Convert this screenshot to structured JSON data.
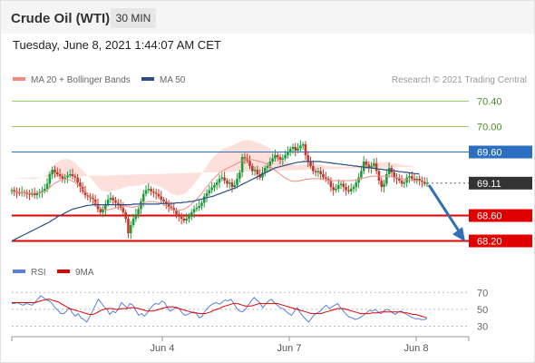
{
  "header": {
    "title": "Crude Oil (WTI)",
    "timeframe": "30 MIN"
  },
  "timestamp": "Tuesday, June 8, 2021 1:44:07 AM CET",
  "legend": {
    "ma20": {
      "label": "MA 20 + Bollinger Bands",
      "color": "#f08a80"
    },
    "ma50": {
      "label": "MA 50",
      "color": "#2c4e87"
    },
    "rsi": {
      "label": "RSI",
      "color": "#5a7fd6"
    },
    "ma9": {
      "label": "9MA",
      "color": "#e00000"
    }
  },
  "copyright": "Research © 2021 Trading Central",
  "colors": {
    "up": "#1e9b3a",
    "down": "#c0392b",
    "resistance": "#2c6fc0",
    "support": "#e00000",
    "target": "#9ccc65",
    "current": "#333333",
    "arrow": "#2e6fb8"
  },
  "chart_data": [
    {
      "type": "candlestick",
      "yaxis": {
        "ticks": [
          68.2,
          68.6,
          69.11,
          69.6,
          70.0,
          70.4
        ],
        "min": 68.15,
        "max": 70.55
      },
      "x_labels": [
        "Jun 4",
        "Jun 7",
        "Jun 8"
      ],
      "levels": [
        {
          "value": 70.4,
          "label": "70.40",
          "kind": "target"
        },
        {
          "value": 70.0,
          "label": "70.00",
          "kind": "target"
        },
        {
          "value": 69.6,
          "label": "69.60",
          "kind": "resistance"
        },
        {
          "value": 69.11,
          "label": "69.11",
          "kind": "current"
        },
        {
          "value": 68.6,
          "label": "68.60",
          "kind": "support"
        },
        {
          "value": 68.2,
          "label": "68.20",
          "kind": "support"
        }
      ],
      "closes": [
        69.0,
        68.98,
        68.96,
        68.95,
        68.97,
        68.96,
        68.94,
        68.93,
        68.95,
        68.92,
        68.95,
        68.97,
        68.99,
        69.02,
        69.1,
        69.25,
        69.32,
        69.28,
        69.25,
        69.22,
        69.18,
        69.2,
        69.23,
        69.25,
        69.22,
        69.2,
        69.12,
        69.05,
        68.98,
        68.92,
        68.9,
        68.88,
        68.85,
        68.78,
        68.7,
        68.65,
        68.7,
        68.78,
        68.85,
        68.88,
        68.84,
        68.8,
        68.78,
        68.72,
        68.65,
        68.55,
        68.32,
        68.45,
        68.55,
        68.62,
        68.7,
        68.82,
        68.94,
        69.0,
        69.02,
        68.98,
        68.96,
        68.94,
        68.9,
        68.85,
        68.82,
        68.78,
        68.74,
        68.72,
        68.68,
        68.62,
        68.58,
        68.55,
        68.52,
        68.55,
        68.6,
        68.65,
        68.7,
        68.72,
        68.75,
        68.8,
        68.9,
        68.95,
        69.0,
        69.04,
        69.08,
        69.12,
        69.18,
        69.2,
        69.15,
        69.1,
        69.12,
        69.05,
        69.08,
        69.18,
        69.28,
        69.52,
        69.5,
        69.46,
        69.38,
        69.3,
        69.32,
        69.25,
        69.2,
        69.28,
        69.35,
        69.38,
        69.45,
        69.5,
        69.55,
        69.52,
        69.48,
        69.5,
        69.55,
        69.6,
        69.65,
        69.68,
        69.62,
        69.66,
        69.7,
        69.72,
        69.55,
        69.45,
        69.38,
        69.3,
        69.28,
        69.3,
        69.25,
        69.2,
        69.18,
        69.15,
        69.05,
        69.0,
        69.02,
        69.08,
        69.1,
        69.05,
        69.0,
        68.98,
        69.02,
        69.05,
        69.12,
        69.2,
        69.3,
        69.45,
        69.4,
        69.35,
        69.38,
        69.42,
        69.3,
        69.15,
        69.05,
        69.1,
        69.25,
        69.35,
        69.28,
        69.2,
        69.18,
        69.15,
        69.1,
        69.12,
        69.2,
        69.22,
        69.18,
        69.16,
        69.18,
        69.15,
        69.13,
        69.1,
        69.11
      ],
      "ma20": [
        68.97,
        68.97,
        68.97,
        68.96,
        68.96,
        68.96,
        68.96,
        68.96,
        68.95,
        68.95,
        68.96,
        68.96,
        68.97,
        68.98,
        69.0,
        69.04,
        69.08,
        69.11,
        69.13,
        69.15,
        69.16,
        69.17,
        69.17,
        69.16,
        69.14,
        69.12,
        69.09,
        69.05,
        69.01,
        68.97,
        68.93,
        68.89,
        68.85,
        68.8,
        68.76,
        68.72,
        68.7,
        68.69,
        68.69,
        68.7,
        68.71,
        68.72,
        68.73,
        68.74,
        68.75,
        68.75,
        68.74,
        68.73,
        68.73,
        68.74,
        68.75,
        68.77,
        68.79,
        68.81,
        68.82,
        68.82,
        68.82,
        68.81,
        68.8,
        68.79,
        68.77,
        68.75,
        68.73,
        68.71,
        68.69,
        68.68,
        68.68,
        68.69,
        68.7,
        68.72,
        68.75,
        68.78,
        68.82,
        68.86,
        68.9,
        68.95,
        69.0,
        69.05,
        69.1,
        69.15,
        69.19,
        69.23,
        69.27,
        69.3,
        69.32,
        69.34,
        69.36,
        69.38,
        69.4,
        69.42,
        69.44,
        69.46,
        69.47,
        69.48,
        69.48,
        69.48,
        69.47,
        69.46,
        69.45,
        69.44,
        69.42,
        69.4,
        69.37,
        69.34,
        69.31,
        69.28,
        69.25,
        69.22,
        69.19,
        69.17,
        69.15,
        69.14,
        69.14,
        69.14,
        69.15,
        69.16,
        69.17,
        69.17,
        69.18,
        69.18,
        69.18,
        69.18,
        69.18,
        69.17,
        69.16,
        69.16,
        69.15,
        69.15,
        69.15,
        69.15,
        69.15,
        69.15,
        69.15,
        69.15,
        69.15,
        69.15,
        69.16,
        69.17,
        69.18,
        69.19,
        69.2,
        69.21,
        69.22,
        69.22,
        69.22,
        69.22,
        69.22,
        69.22,
        69.22,
        69.21,
        69.21,
        69.2,
        69.2,
        69.19,
        69.18,
        69.17,
        69.17,
        69.16,
        69.16,
        69.15,
        69.15,
        69.15
      ],
      "ma50": [
        68.2,
        68.22,
        68.24,
        68.26,
        68.28,
        68.3,
        68.32,
        68.34,
        68.36,
        68.38,
        68.4,
        68.42,
        68.44,
        68.46,
        68.48,
        68.5,
        68.53,
        68.55,
        68.58,
        68.6,
        68.62,
        68.64,
        68.66,
        68.68,
        68.7,
        68.71,
        68.72,
        68.73,
        68.74,
        68.75,
        68.76,
        68.76,
        68.77,
        68.77,
        68.77,
        68.77,
        68.77,
        68.77,
        68.77,
        68.77,
        68.77,
        68.77,
        68.77,
        68.77,
        68.77,
        68.77,
        68.77,
        68.77,
        68.78,
        68.78,
        68.78,
        68.78,
        68.78,
        68.78,
        68.78,
        68.78,
        68.78,
        68.78,
        68.78,
        68.79,
        68.79,
        68.79,
        68.79,
        68.79,
        68.79,
        68.8,
        68.8,
        68.8,
        68.81,
        68.81,
        68.82,
        68.82,
        68.83,
        68.84,
        68.85,
        68.86,
        68.87,
        68.88,
        68.89,
        68.9,
        68.91,
        68.93,
        68.94,
        68.96,
        68.97,
        68.99,
        69.0,
        69.02,
        69.03,
        69.05,
        69.07,
        69.09,
        69.11,
        69.13,
        69.15,
        69.17,
        69.19,
        69.21,
        69.23,
        69.25,
        69.27,
        69.29,
        69.31,
        69.33,
        69.35,
        69.36,
        69.37,
        69.38,
        69.39,
        69.4,
        69.41,
        69.42,
        69.43,
        69.44,
        69.44,
        69.45,
        69.45,
        69.45,
        69.45,
        69.45,
        69.45,
        69.45,
        69.45,
        69.44,
        69.44,
        69.43,
        69.43,
        69.42,
        69.42,
        69.41,
        69.41,
        69.4,
        69.4,
        69.39,
        69.39,
        69.38,
        69.38,
        69.37,
        69.37,
        69.36,
        69.36,
        69.35,
        69.35,
        69.34,
        69.34,
        69.33,
        69.33,
        69.32,
        69.32,
        69.31,
        69.31,
        69.3,
        69.3,
        69.29,
        69.29,
        69.28,
        69.28,
        69.27,
        69.27,
        69.26,
        69.26,
        69.25
      ],
      "bb_width": [
        0.22,
        0.22,
        0.22,
        0.22,
        0.22,
        0.22,
        0.22,
        0.22,
        0.22,
        0.22,
        0.22,
        0.23,
        0.23,
        0.24,
        0.25,
        0.27,
        0.29,
        0.3,
        0.31,
        0.32,
        0.32,
        0.32,
        0.32,
        0.32,
        0.31,
        0.31,
        0.3,
        0.3,
        0.3,
        0.3,
        0.3,
        0.3,
        0.3,
        0.3,
        0.29,
        0.29,
        0.29,
        0.29,
        0.28,
        0.28,
        0.28,
        0.28,
        0.28,
        0.28,
        0.29,
        0.3,
        0.32,
        0.33,
        0.33,
        0.33,
        0.32,
        0.31,
        0.3,
        0.29,
        0.28,
        0.28,
        0.27,
        0.27,
        0.26,
        0.26,
        0.25,
        0.25,
        0.24,
        0.24,
        0.24,
        0.24,
        0.24,
        0.24,
        0.24,
        0.25,
        0.26,
        0.27,
        0.28,
        0.29,
        0.3,
        0.31,
        0.32,
        0.33,
        0.34,
        0.34,
        0.34,
        0.34,
        0.34,
        0.34,
        0.34,
        0.33,
        0.33,
        0.32,
        0.32,
        0.32,
        0.32,
        0.32,
        0.31,
        0.31,
        0.3,
        0.3,
        0.29,
        0.29,
        0.28,
        0.28,
        0.28,
        0.28,
        0.28,
        0.27,
        0.27,
        0.27,
        0.27,
        0.27,
        0.27,
        0.26,
        0.26,
        0.26,
        0.25,
        0.25,
        0.25,
        0.25,
        0.24,
        0.24,
        0.24,
        0.24,
        0.23,
        0.23,
        0.23,
        0.22,
        0.22,
        0.22,
        0.22,
        0.22,
        0.22,
        0.22,
        0.22,
        0.22,
        0.22,
        0.22,
        0.22,
        0.22,
        0.22,
        0.22,
        0.22,
        0.22,
        0.22,
        0.22,
        0.22,
        0.22,
        0.22,
        0.22,
        0.22,
        0.22,
        0.22,
        0.22,
        0.22,
        0.22,
        0.22,
        0.22,
        0.22,
        0.22,
        0.22,
        0.22,
        0.22,
        0.22,
        0.22,
        0.22,
        0.22,
        0.22
      ]
    },
    {
      "type": "line",
      "yaxis": {
        "ticks": [
          30,
          50,
          70
        ],
        "min": 22,
        "max": 80
      },
      "series": [
        {
          "name": "RSI",
          "values": [
            57,
            57,
            58,
            56,
            55,
            57,
            56,
            55,
            58,
            62,
            66,
            64,
            61,
            60,
            57,
            52,
            49,
            45,
            45,
            48,
            52,
            46,
            42,
            45,
            40,
            38,
            35,
            41,
            48,
            55,
            62,
            58,
            53,
            50,
            44,
            48,
            46,
            51,
            58,
            55,
            52,
            57,
            55,
            49,
            43,
            45,
            42,
            46,
            51,
            55,
            57,
            56,
            60,
            58,
            52,
            48,
            50,
            53,
            51,
            46,
            43,
            44,
            46,
            47,
            45,
            40,
            42,
            48,
            52,
            55,
            57,
            58,
            56,
            59,
            61,
            60,
            62,
            57,
            51,
            48,
            47,
            50,
            55,
            60,
            64,
            61,
            58,
            52,
            56,
            60,
            62,
            58,
            55,
            52,
            51,
            48,
            45,
            43,
            48,
            52,
            46,
            42,
            38,
            35,
            40,
            44,
            46,
            48,
            52,
            55,
            51,
            53,
            55,
            57,
            52,
            48,
            44,
            41,
            40,
            38,
            39,
            41,
            43,
            46,
            49,
            48,
            50,
            47,
            45,
            48,
            50,
            49,
            46,
            44,
            47,
            48,
            46,
            44,
            42,
            40,
            39,
            39,
            38,
            38,
            39
          ]
        },
        {
          "name": "9MA",
          "values": [
            58,
            58,
            58,
            58,
            58,
            58,
            58,
            58,
            58,
            59,
            60,
            61,
            62,
            62,
            61,
            60,
            59,
            57,
            55,
            53,
            51,
            50,
            49,
            48,
            47,
            46,
            45,
            44,
            44,
            45,
            47,
            49,
            50,
            51,
            51,
            51,
            50,
            50,
            51,
            51,
            51,
            52,
            52,
            52,
            51,
            50,
            49,
            48,
            48,
            48,
            49,
            50,
            51,
            52,
            53,
            53,
            53,
            52,
            51,
            50,
            49,
            48,
            47,
            46,
            46,
            45,
            45,
            45,
            46,
            47,
            49,
            50,
            51,
            53,
            54,
            55,
            56,
            57,
            57,
            56,
            55,
            54,
            54,
            54,
            55,
            56,
            57,
            57,
            57,
            57,
            57,
            57,
            57,
            56,
            55,
            54,
            53,
            52,
            51,
            50,
            49,
            48,
            47,
            46,
            45,
            45,
            45,
            45,
            46,
            47,
            48,
            49,
            50,
            51,
            51,
            51,
            50,
            49,
            48,
            47,
            46,
            45,
            45,
            45,
            45,
            46,
            46,
            46,
            47,
            47,
            47,
            47,
            47,
            47,
            47,
            47,
            46,
            46,
            45,
            44,
            44,
            43,
            42,
            41,
            40
          ]
        }
      ]
    }
  ]
}
